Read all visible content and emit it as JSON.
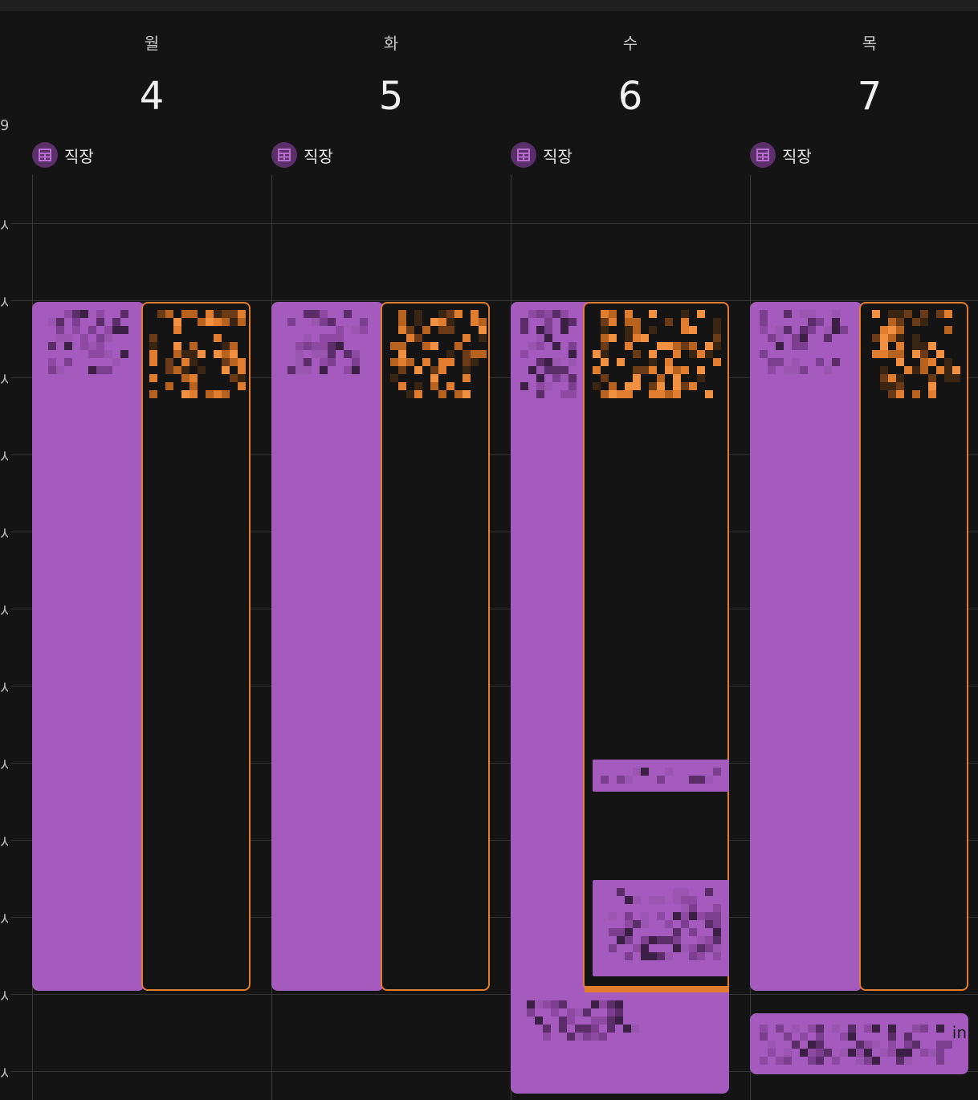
{
  "week": {
    "tz_label": "9",
    "days": [
      {
        "name": "월",
        "num": "4",
        "allday_label": "직장"
      },
      {
        "name": "화",
        "num": "5",
        "allday_label": "직장"
      },
      {
        "name": "수",
        "num": "6",
        "allday_label": "직장"
      },
      {
        "name": "목",
        "num": "7",
        "allday_label": "직장"
      }
    ],
    "hour_tick": "시",
    "partial_event_text": "in"
  },
  "colors": {
    "event_purple": "#a55bbd",
    "event_orange": "#e07d2f",
    "background": "#141414",
    "calendar_icon": "#5a2f6a"
  },
  "icons": {
    "allday_calendar": "calendar-grid-icon"
  }
}
